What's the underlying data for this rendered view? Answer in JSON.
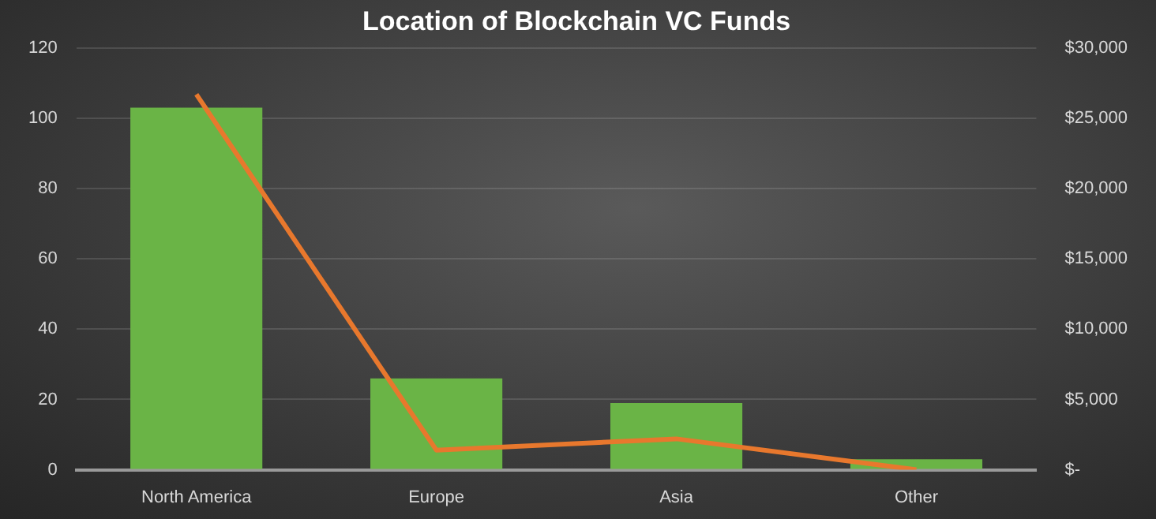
{
  "chart_data": {
    "type": "bar",
    "title": "Location of Blockchain VC Funds",
    "categories": [
      "North America",
      "Europe",
      "Asia",
      "Other"
    ],
    "series": [
      {
        "color": "#6ab446",
        "values": [
          103,
          26,
          19,
          3
        ]
      },
      {
        "type": "line",
        "axis": "y2",
        "color": "#e8782d",
        "values": [
          26700,
          1400,
          2200,
          0
        ]
      }
    ],
    "ylim": [
      0,
      120
    ],
    "yticks": [
      0,
      20,
      40,
      60,
      80,
      100,
      120
    ],
    "y2lim": [
      0,
      30000
    ],
    "y2ticks": [
      {
        "value": 0,
        "label": "$-"
      },
      {
        "value": 5000,
        "label": "$5,000"
      },
      {
        "value": 10000,
        "label": "$10,000"
      },
      {
        "value": 15000,
        "label": "$15,000"
      },
      {
        "value": 20000,
        "label": "$20,000"
      },
      {
        "value": 25000,
        "label": "$25,000"
      },
      {
        "value": 30000,
        "label": "$30,000"
      }
    ],
    "grid": "y",
    "legend": false,
    "marker": "none",
    "line_style": "solid"
  }
}
